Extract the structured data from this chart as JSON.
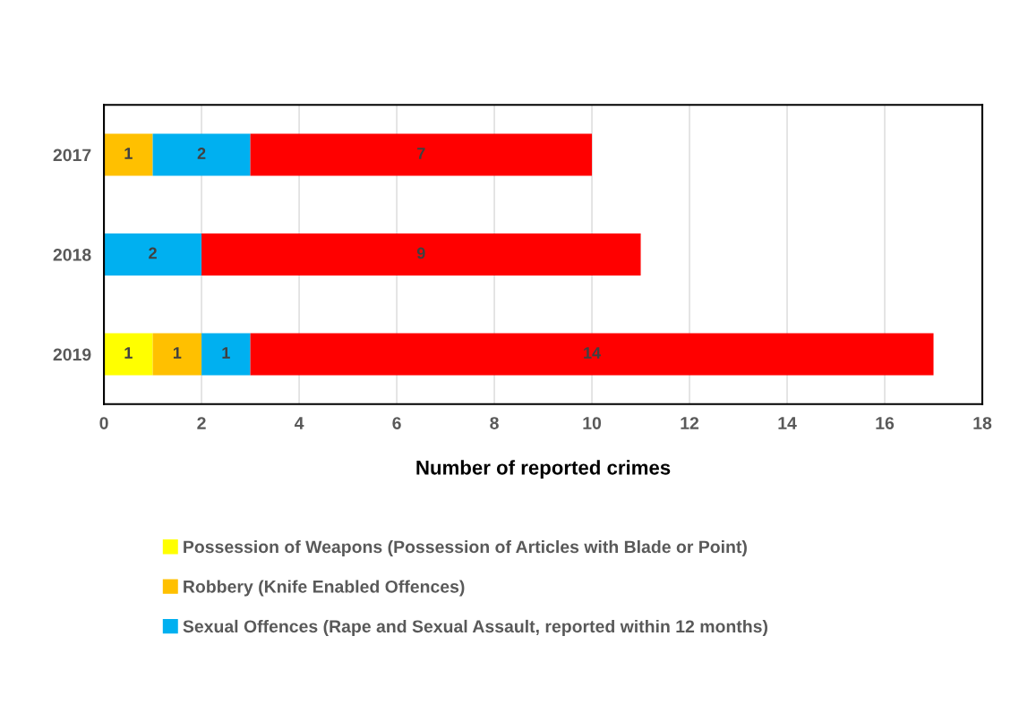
{
  "chart_data": {
    "type": "bar",
    "orientation": "horizontal",
    "stacked": true,
    "xlabel": "Number of reported crimes",
    "categories": [
      "2017",
      "2018",
      "2019"
    ],
    "series": [
      {
        "name": "Possession of Weapons (Possession of Articles with Blade or Point)",
        "color": "#ffff00",
        "values": [
          null,
          null,
          1
        ]
      },
      {
        "name": "Robbery (Knife Enabled Offences)",
        "color": "#ffc000",
        "values": [
          1,
          null,
          1
        ]
      },
      {
        "name": "Sexual Offences (Rape and Sexual Assault, reported within 12 months)",
        "color": "#00b0f0",
        "values": [
          2,
          2,
          1
        ]
      },
      {
        "color": "#ff0000",
        "values": [
          7,
          9,
          14
        ]
      }
    ],
    "xlim": [
      0,
      18
    ],
    "xticks": [
      0,
      2,
      4,
      6,
      8,
      10,
      12,
      14,
      16,
      18
    ],
    "grid": "x",
    "legend": "bottom",
    "data_labels": true
  }
}
